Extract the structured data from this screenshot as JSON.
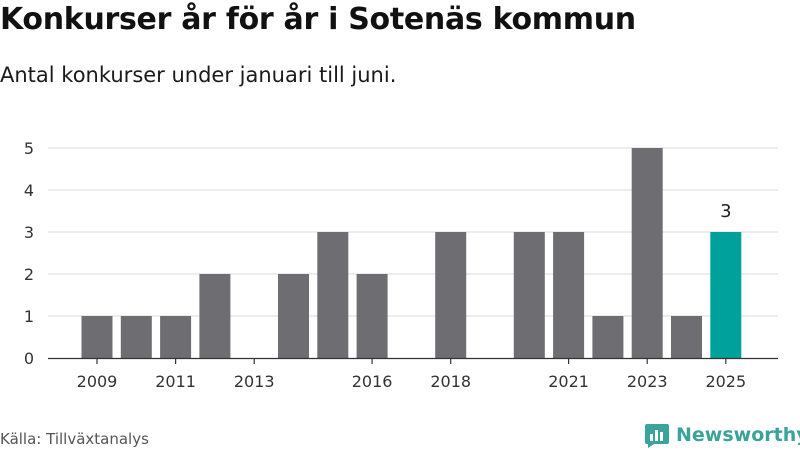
{
  "title": "Konkurser år för år i Sotenäs kommun",
  "subtitle": "Antal konkurser under januari till juni.",
  "source": "Källa: Tillväxtanalys",
  "brand": {
    "name": "Newsworthy",
    "icon": "newsworthy-logo-icon",
    "color": "#3aa39a"
  },
  "colors": {
    "bar": "#6d6d72",
    "highlight": "#00a19a",
    "grid": "#d9d9d9",
    "axis": "#333333"
  },
  "chart_data": {
    "type": "bar",
    "categories": [
      "2009",
      "2010",
      "2011",
      "2012",
      "2013",
      "2014",
      "2015",
      "2016",
      "2017",
      "2018",
      "2019",
      "2020",
      "2021",
      "2022",
      "2023",
      "2024",
      "2025"
    ],
    "values": [
      1,
      1,
      1,
      2,
      0,
      2,
      3,
      2,
      0,
      3,
      0,
      3,
      3,
      1,
      5,
      1,
      3
    ],
    "x_tick_labels": [
      "2009",
      "2011",
      "2013",
      "2016",
      "2018",
      "2021",
      "2023",
      "2025"
    ],
    "y_ticks": [
      0,
      1,
      2,
      3,
      4,
      5
    ],
    "ylim": [
      0,
      5
    ],
    "highlight": {
      "category": "2025",
      "label": "3"
    },
    "grid": true,
    "legend": "none"
  }
}
